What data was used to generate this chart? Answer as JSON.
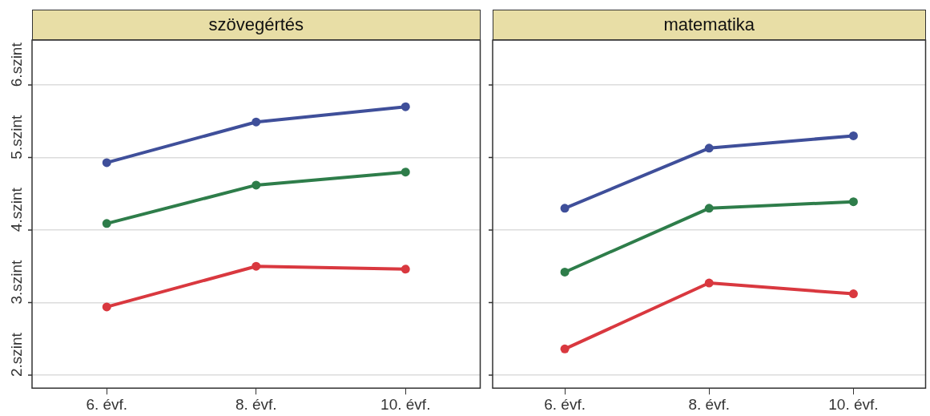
{
  "chart_data": [
    {
      "type": "line",
      "title": "szövegértés",
      "categories": [
        "6. évf.",
        "8. évf.",
        "10. évf."
      ],
      "series": [
        {
          "color": "#3f4f9a",
          "values": [
            4.93,
            5.49,
            5.7
          ]
        },
        {
          "color": "#2e7d4a",
          "values": [
            4.09,
            4.62,
            4.8
          ]
        },
        {
          "color": "#d9383f",
          "values": [
            2.94,
            3.5,
            3.46
          ]
        }
      ],
      "ylim": [
        1.82,
        6.62
      ],
      "yticks": [
        {
          "value": 2,
          "label": null
        },
        {
          "value": 3,
          "label": null
        },
        {
          "value": 4,
          "label": null
        },
        {
          "value": 5,
          "label": null
        },
        {
          "value": 6,
          "label": null
        },
        {
          "value": 2.28,
          "label": "2.szint"
        },
        {
          "value": 3.28,
          "label": "3.szint"
        },
        {
          "value": 4.28,
          "label": "4.szint"
        },
        {
          "value": 5.28,
          "label": "5.szint"
        },
        {
          "value": 6.28,
          "label": "6.szint"
        }
      ],
      "grid": "y",
      "marker": "circle",
      "line_style": "solid"
    },
    {
      "type": "line",
      "title": "matematika",
      "categories": [
        "6. évf.",
        "8. évf.",
        "10. évf."
      ],
      "series": [
        {
          "color": "#3f4f9a",
          "values": [
            4.3,
            5.13,
            5.3
          ]
        },
        {
          "color": "#2e7d4a",
          "values": [
            3.42,
            4.3,
            4.39
          ]
        },
        {
          "color": "#d9383f",
          "values": [
            2.36,
            3.27,
            3.12
          ]
        }
      ],
      "ylim": [
        1.82,
        6.62
      ],
      "yticks": [
        {
          "value": 2,
          "label": null
        },
        {
          "value": 3,
          "label": null
        },
        {
          "value": 4,
          "label": null
        },
        {
          "value": 5,
          "label": null
        },
        {
          "value": 6,
          "label": null
        }
      ],
      "grid": "y",
      "marker": "circle",
      "line_style": "solid",
      "tick_labels": "x"
    }
  ]
}
